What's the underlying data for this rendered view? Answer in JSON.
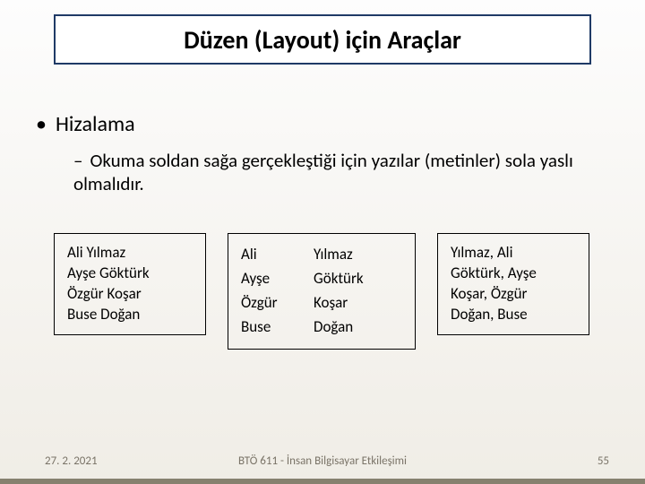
{
  "title": "Düzen (Layout) için Araçlar",
  "bullet1": "Hizalama",
  "bullet2": "Okuma soldan sağa gerçekleştiği için yazılar (metinler) sola yaslı olmalıdır.",
  "box1": {
    "lines": [
      "Ali Yılmaz",
      "Ayşe Göktürk",
      "Özgür Koşar",
      "Buse Doğan"
    ]
  },
  "box2": {
    "rows": [
      [
        "Ali",
        "Yılmaz"
      ],
      [
        "Ayşe",
        "Göktürk"
      ],
      [
        "Özgür",
        "Koşar"
      ],
      [
        "Buse",
        "Doğan"
      ]
    ]
  },
  "box3": {
    "lines": [
      "Yılmaz, Ali",
      "Göktürk, Ayşe",
      "Koşar, Özgür",
      "Doğan, Buse"
    ]
  },
  "footer": {
    "date": "27. 2. 2021",
    "center": "BTÖ 611 - İnsan Bilgisayar Etkileşimi",
    "page": "55"
  }
}
